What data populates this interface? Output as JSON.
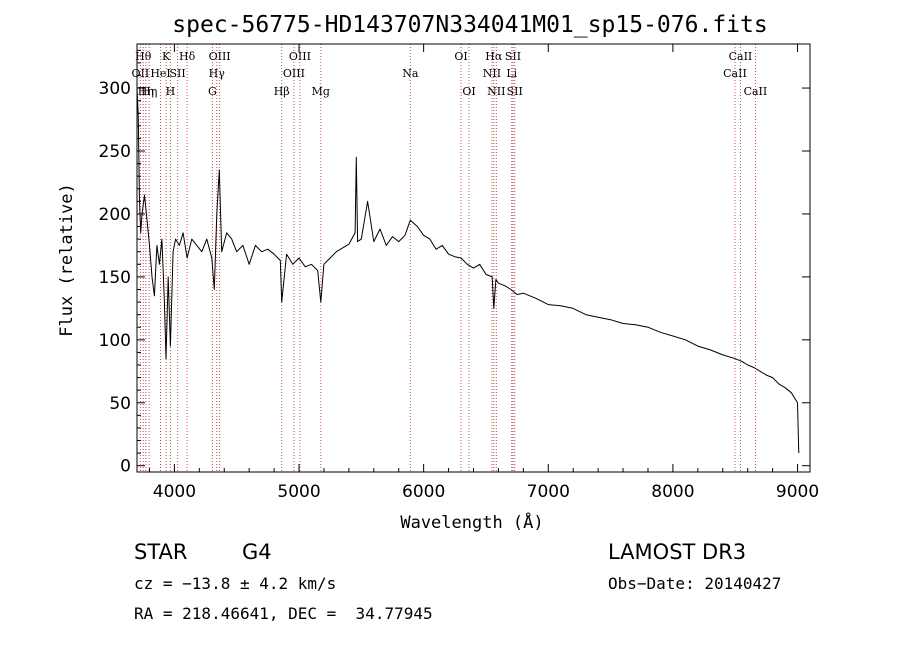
{
  "chart_data": {
    "type": "line",
    "title": "spec-56775-HD143707N334041M01_sp15-076.fits",
    "xlabel": "Wavelength (Å)",
    "ylabel": "Flux (relative)",
    "xlim": [
      3700,
      9100
    ],
    "ylim": [
      -5,
      335
    ],
    "x_ticks": [
      4000,
      5000,
      6000,
      7000,
      8000,
      9000
    ],
    "y_ticks": [
      0,
      50,
      100,
      150,
      200,
      250,
      300
    ],
    "grid": false,
    "legend": "none",
    "line_color": "#000000",
    "marker_color": "#c0504d",
    "series": [
      {
        "x": [
          3700,
          3710,
          3720,
          3730,
          3740,
          3760,
          3780,
          3800,
          3820,
          3840,
          3860,
          3880,
          3900,
          3920,
          3933,
          3950,
          3968,
          3990,
          4010,
          4040,
          4070,
          4102,
          4140,
          4180,
          4220,
          4260,
          4300,
          4320,
          4340,
          4360,
          4380,
          4420,
          4460,
          4500,
          4550,
          4600,
          4650,
          4700,
          4750,
          4800,
          4850,
          4861,
          4900,
          4950,
          5000,
          5050,
          5100,
          5150,
          5175,
          5200,
          5250,
          5300,
          5350,
          5400,
          5450,
          5460,
          5470,
          5500,
          5550,
          5600,
          5650,
          5700,
          5750,
          5800,
          5850,
          5893,
          5950,
          6000,
          6050,
          6100,
          6150,
          6200,
          6250,
          6300,
          6350,
          6400,
          6450,
          6500,
          6550,
          6563,
          6580,
          6600,
          6650,
          6700,
          6750,
          6800,
          6900,
          7000,
          7100,
          7200,
          7300,
          7400,
          7500,
          7600,
          7700,
          7800,
          7900,
          8000,
          8100,
          8200,
          8300,
          8400,
          8500,
          8550,
          8600,
          8650,
          8700,
          8750,
          8800,
          8850,
          8900,
          8950,
          9000,
          9010
        ],
        "y": [
          300,
          280,
          210,
          185,
          200,
          215,
          195,
          175,
          150,
          135,
          175,
          160,
          180,
          130,
          85,
          150,
          95,
          170,
          180,
          175,
          185,
          165,
          180,
          175,
          170,
          180,
          165,
          140,
          200,
          235,
          170,
          185,
          180,
          170,
          175,
          160,
          175,
          170,
          172,
          168,
          163,
          130,
          168,
          160,
          165,
          158,
          160,
          155,
          130,
          160,
          165,
          170,
          173,
          176,
          185,
          245,
          178,
          180,
          210,
          178,
          188,
          175,
          182,
          178,
          183,
          195,
          190,
          183,
          180,
          172,
          175,
          168,
          166,
          165,
          160,
          157,
          160,
          152,
          150,
          125,
          148,
          145,
          143,
          140,
          136,
          137,
          133,
          128,
          127,
          125,
          120,
          118,
          116,
          113,
          112,
          110,
          106,
          103,
          100,
          95,
          92,
          88,
          85,
          83,
          80,
          78,
          75,
          72,
          70,
          65,
          62,
          58,
          50,
          10
        ]
      }
    ],
    "line_markers": [
      {
        "x": 3727,
        "label": "OII",
        "row": 1
      },
      {
        "x": 3750,
        "label": "Hθ",
        "row": 0
      },
      {
        "x": 3771,
        "label": "Hη",
        "row": 2
      },
      {
        "x": 3798,
        "label": "Hη",
        "row": 2
      },
      {
        "x": 3889,
        "label": "HeI",
        "row": 1
      },
      {
        "x": 3934,
        "label": "K",
        "row": 0
      },
      {
        "x": 3968,
        "label": "H",
        "row": 2
      },
      {
        "x": 4026,
        "label": "SII",
        "row": 1
      },
      {
        "x": 4102,
        "label": "Hδ",
        "row": 0
      },
      {
        "x": 4305,
        "label": "G",
        "row": 2
      },
      {
        "x": 4340,
        "label": "Hγ",
        "row": 1
      },
      {
        "x": 4363,
        "label": "OIII",
        "row": 0
      },
      {
        "x": 4861,
        "label": "Hβ",
        "row": 2
      },
      {
        "x": 4959,
        "label": "OIII",
        "row": 1
      },
      {
        "x": 5007,
        "label": "OIII",
        "row": 0
      },
      {
        "x": 5175,
        "label": "Mg",
        "row": 2
      },
      {
        "x": 5893,
        "label": "Na",
        "row": 1
      },
      {
        "x": 6300,
        "label": "OI",
        "row": 0
      },
      {
        "x": 6364,
        "label": "OI",
        "row": 2
      },
      {
        "x": 6548,
        "label": "NII",
        "row": 1
      },
      {
        "x": 6563,
        "label": "Hα",
        "row": 0
      },
      {
        "x": 6583,
        "label": "NII",
        "row": 2
      },
      {
        "x": 6707,
        "label": "Li",
        "row": 1
      },
      {
        "x": 6717,
        "label": "SII",
        "row": 0
      },
      {
        "x": 6731,
        "label": "SII",
        "row": 2
      },
      {
        "x": 8498,
        "label": "CaII",
        "row": 1
      },
      {
        "x": 8542,
        "label": "CaII",
        "row": 0
      },
      {
        "x": 8662,
        "label": "CaII",
        "row": 2
      }
    ]
  },
  "footer": {
    "class_label": "STAR",
    "subclass": "G4",
    "survey": "LAMOST DR3",
    "cz": "cz = −13.8 ± 4.2 km/s",
    "obs_date": "Obs−Date: 20140427",
    "coords": "RA = 218.46641, DEC =  34.77945"
  }
}
